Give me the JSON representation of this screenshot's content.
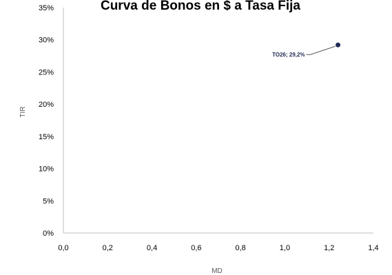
{
  "chart_data": {
    "type": "scatter",
    "title": "Curva de Bonos en $ a Tasa Fija",
    "xlabel": "MD",
    "ylabel": "TIR",
    "xlim": [
      0,
      1.4
    ],
    "ylim": [
      0,
      0.35
    ],
    "x_ticks": [
      "0,0",
      "0,2",
      "0,4",
      "0,6",
      "0,8",
      "1,0",
      "1,2",
      "1,4"
    ],
    "y_ticks": [
      "0%",
      "5%",
      "10%",
      "15%",
      "20%",
      "25%",
      "30%",
      "35%"
    ],
    "grid": false,
    "series": [
      {
        "points": [
          {
            "x": 1.24,
            "y": 0.292,
            "label": "TO26; 29,2%"
          }
        ]
      }
    ],
    "colors": {
      "marker": "#1f2a55",
      "axis": "#bfbfbf",
      "leader": "#404040"
    }
  }
}
